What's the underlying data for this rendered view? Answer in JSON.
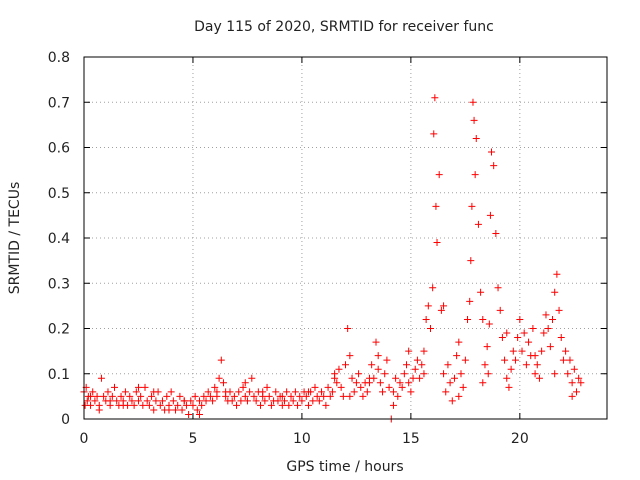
{
  "chart_data": {
    "type": "scatter",
    "title": "Day 115 of 2020, SRMTID for receiver func",
    "xlabel": "GPS time / hours",
    "ylabel": "SRMTID / TECUs",
    "xlim": [
      0,
      24
    ],
    "ylim": [
      0,
      0.8
    ],
    "grid": true,
    "marker": "+",
    "x_ticks": [
      0,
      5,
      10,
      15,
      20
    ],
    "x_tick_labels": [
      "0",
      "5",
      "10",
      "15",
      "20"
    ],
    "y_ticks": [
      0,
      0.1,
      0.2,
      0.3,
      0.4,
      0.5,
      0.6,
      0.7,
      0.8
    ],
    "y_tick_labels": [
      "0",
      "0.1",
      "0.2",
      "0.3",
      "0.4",
      "0.5",
      "0.6",
      "0.7",
      "0.8"
    ],
    "series": [
      {
        "name": "SRMTID",
        "color": "#ff0000",
        "x": [
          0.0,
          0.05,
          0.1,
          0.15,
          0.2,
          0.3,
          0.4,
          0.5,
          0.6,
          0.7,
          0.8,
          0.9,
          1.0,
          1.1,
          1.2,
          1.3,
          1.4,
          1.5,
          1.6,
          1.7,
          1.8,
          1.9,
          2.0,
          2.1,
          2.2,
          2.3,
          2.4,
          2.5,
          2.6,
          2.7,
          2.8,
          2.9,
          3.0,
          3.1,
          3.2,
          3.3,
          3.4,
          3.5,
          3.6,
          3.7,
          3.8,
          3.9,
          4.0,
          4.1,
          4.2,
          4.3,
          4.4,
          4.5,
          4.6,
          4.7,
          4.8,
          4.9,
          5.0,
          5.1,
          5.2,
          5.3,
          5.4,
          5.5,
          5.6,
          5.7,
          5.8,
          5.9,
          6.0,
          6.1,
          6.2,
          6.3,
          6.4,
          6.5,
          6.6,
          6.7,
          6.8,
          6.9,
          7.0,
          7.1,
          7.2,
          7.3,
          7.4,
          7.5,
          7.6,
          7.7,
          7.8,
          7.9,
          8.0,
          8.1,
          8.2,
          8.3,
          8.4,
          8.5,
          8.6,
          8.7,
          8.8,
          8.9,
          9.0,
          9.1,
          9.2,
          9.3,
          9.4,
          9.5,
          9.6,
          9.7,
          9.8,
          9.9,
          10.0,
          10.1,
          10.2,
          10.3,
          10.4,
          10.5,
          10.6,
          10.7,
          10.8,
          10.9,
          11.0,
          11.1,
          11.2,
          11.3,
          11.4,
          11.5,
          11.6,
          11.7,
          11.8,
          11.9,
          12.0,
          12.1,
          12.2,
          12.3,
          12.4,
          12.5,
          12.6,
          12.7,
          12.8,
          12.9,
          13.0,
          13.1,
          13.2,
          13.3,
          13.4,
          13.5,
          13.6,
          13.7,
          13.8,
          13.9,
          14.0,
          14.1,
          14.2,
          14.3,
          14.4,
          14.5,
          14.6,
          14.7,
          14.8,
          14.9,
          15.0,
          15.1,
          15.2,
          15.3,
          15.4,
          15.5,
          15.6,
          15.7,
          15.8,
          15.9,
          16.0,
          16.05,
          16.1,
          16.15,
          16.2,
          16.3,
          16.4,
          16.5,
          16.6,
          16.7,
          16.8,
          16.9,
          17.0,
          17.1,
          17.2,
          17.3,
          17.4,
          17.5,
          17.6,
          17.7,
          17.75,
          17.8,
          17.85,
          17.9,
          17.95,
          18.0,
          18.1,
          18.2,
          18.3,
          18.4,
          18.5,
          18.55,
          18.6,
          18.65,
          18.7,
          18.8,
          18.9,
          19.0,
          19.1,
          19.2,
          19.3,
          19.4,
          19.5,
          19.6,
          19.7,
          19.8,
          19.9,
          20.0,
          20.1,
          20.2,
          20.3,
          20.4,
          20.5,
          20.6,
          20.7,
          20.8,
          20.9,
          21.0,
          21.1,
          21.2,
          21.3,
          21.4,
          21.5,
          21.6,
          21.7,
          21.8,
          21.9,
          22.0,
          22.1,
          22.2,
          22.3,
          22.4,
          22.5,
          22.6,
          22.7,
          22.8,
          0.3,
          0.7,
          1.2,
          1.8,
          2.5,
          3.2,
          3.9,
          4.6,
          5.3,
          6.1,
          6.5,
          7.4,
          8.2,
          9.1,
          10.3,
          11.5,
          12.2,
          13.1,
          13.5,
          14.2,
          14.9,
          15.6,
          16.5,
          17.2,
          18.3,
          19.4,
          20.7,
          21.6,
          22.4
        ],
        "y": [
          0.06,
          0.03,
          0.07,
          0.04,
          0.05,
          0.03,
          0.06,
          0.04,
          0.05,
          0.03,
          0.09,
          0.05,
          0.04,
          0.06,
          0.03,
          0.05,
          0.07,
          0.04,
          0.03,
          0.05,
          0.04,
          0.06,
          0.03,
          0.05,
          0.04,
          0.03,
          0.06,
          0.04,
          0.05,
          0.03,
          0.07,
          0.04,
          0.03,
          0.05,
          0.02,
          0.04,
          0.06,
          0.03,
          0.04,
          0.02,
          0.05,
          0.03,
          0.06,
          0.04,
          0.02,
          0.03,
          0.05,
          0.02,
          0.04,
          0.03,
          0.01,
          0.04,
          0.03,
          0.05,
          0.02,
          0.04,
          0.03,
          0.05,
          0.04,
          0.06,
          0.05,
          0.04,
          0.07,
          0.06,
          0.09,
          0.13,
          0.08,
          0.05,
          0.04,
          0.06,
          0.04,
          0.05,
          0.03,
          0.06,
          0.04,
          0.07,
          0.05,
          0.04,
          0.06,
          0.09,
          0.05,
          0.04,
          0.06,
          0.03,
          0.05,
          0.04,
          0.07,
          0.05,
          0.03,
          0.04,
          0.06,
          0.04,
          0.05,
          0.03,
          0.04,
          0.06,
          0.03,
          0.05,
          0.04,
          0.06,
          0.03,
          0.05,
          0.04,
          0.06,
          0.05,
          0.03,
          0.06,
          0.04,
          0.07,
          0.05,
          0.04,
          0.06,
          0.05,
          0.03,
          0.07,
          0.05,
          0.06,
          0.09,
          0.08,
          0.11,
          0.07,
          0.05,
          0.12,
          0.2,
          0.14,
          0.09,
          0.06,
          0.08,
          0.1,
          0.07,
          0.05,
          0.08,
          0.06,
          0.09,
          0.12,
          0.09,
          0.17,
          0.11,
          0.08,
          0.06,
          0.1,
          0.13,
          0.07,
          0.0,
          0.06,
          0.09,
          0.05,
          0.08,
          0.07,
          0.1,
          0.12,
          0.08,
          0.06,
          0.09,
          0.11,
          0.13,
          0.09,
          0.12,
          0.15,
          0.22,
          0.25,
          0.2,
          0.29,
          0.63,
          0.71,
          0.47,
          0.39,
          0.54,
          0.24,
          0.1,
          0.06,
          0.12,
          0.08,
          0.04,
          0.09,
          0.14,
          0.17,
          0.1,
          0.07,
          0.13,
          0.22,
          0.26,
          0.35,
          0.47,
          0.7,
          0.66,
          0.54,
          0.62,
          0.43,
          0.28,
          0.22,
          0.12,
          0.16,
          0.1,
          0.21,
          0.45,
          0.59,
          0.56,
          0.41,
          0.29,
          0.24,
          0.18,
          0.13,
          0.09,
          0.07,
          0.11,
          0.15,
          0.13,
          0.18,
          0.22,
          0.15,
          0.19,
          0.12,
          0.17,
          0.14,
          0.2,
          0.1,
          0.12,
          0.09,
          0.15,
          0.19,
          0.23,
          0.2,
          0.16,
          0.22,
          0.28,
          0.32,
          0.24,
          0.18,
          0.13,
          0.15,
          0.1,
          0.13,
          0.08,
          0.11,
          0.06,
          0.09,
          0.08,
          0.05,
          0.02,
          0.04,
          0.03,
          0.07,
          0.06,
          0.02,
          0.04,
          0.01,
          0.05,
          0.06,
          0.08,
          0.06,
          0.05,
          0.06,
          0.1,
          0.05,
          0.08,
          0.14,
          0.03,
          0.15,
          0.1,
          0.25,
          0.05,
          0.08,
          0.19,
          0.14,
          0.1,
          0.05
        ]
      }
    ]
  }
}
